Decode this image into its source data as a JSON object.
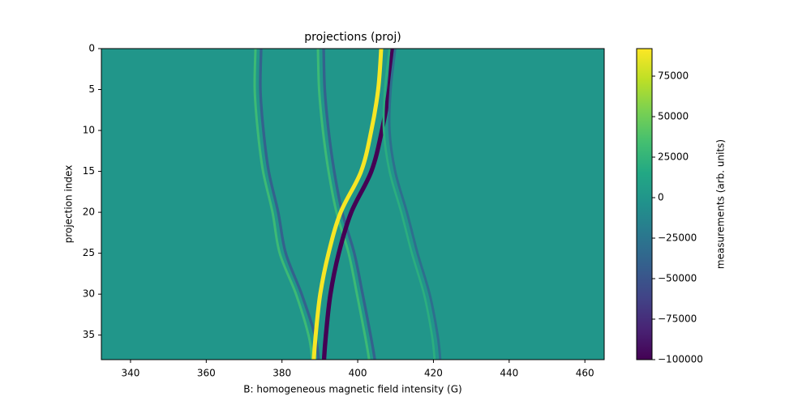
{
  "chart_data": {
    "type": "heatmap-tracks",
    "title": "projections (proj)",
    "xlabel": "B: homogeneous magnetic field intensity (G)",
    "ylabel": "projection index",
    "colorbar_label": "measurements (arb. units)",
    "xlim": [
      332.3,
      465.1
    ],
    "xticks": [
      340,
      360,
      380,
      400,
      420,
      440,
      460
    ],
    "ylim": [
      0,
      38
    ],
    "y_inverted": true,
    "yticks": [
      0,
      5,
      10,
      15,
      20,
      25,
      30,
      35
    ],
    "clim": [
      -100000,
      92000
    ],
    "cticks": [
      {
        "value": -100000,
        "label": "−100000"
      },
      {
        "value": -75000,
        "label": "−75000"
      },
      {
        "value": -50000,
        "label": "−50000"
      },
      {
        "value": -25000,
        "label": "−25000"
      },
      0,
      25000,
      50000,
      75000
    ],
    "background": 0,
    "y": [
      0,
      5,
      10,
      15,
      20,
      25,
      30,
      35,
      38
    ],
    "series": [
      {
        "level": 30000,
        "values": [
          373,
          372.8,
          373.6,
          375,
          377.5,
          379.4,
          383.7,
          387,
          388
        ]
      },
      {
        "level": -40000,
        "values": [
          374.5,
          374.3,
          375.1,
          376.5,
          379,
          381,
          385.2,
          388.7,
          389.7
        ]
      },
      {
        "level": 30000,
        "values": [
          389.5,
          389.8,
          390.8,
          392.3,
          394.4,
          397.6,
          399.8,
          401.9,
          403
        ]
      },
      {
        "level": -40000,
        "values": [
          391,
          391.3,
          392.3,
          393.8,
          395.9,
          399.1,
          401.3,
          403.4,
          404.5
        ]
      },
      {
        "level": 90000,
        "values": [
          406.2,
          405.4,
          403.6,
          400.9,
          395.5,
          392.3,
          390.1,
          388.9,
          388.4
        ]
      },
      {
        "level": -100000,
        "values": [
          409.2,
          408.3,
          406.4,
          403.6,
          398.3,
          395,
          392.8,
          391.6,
          391.1
        ]
      },
      {
        "level": 20000,
        "values": [
          408.4,
          407.2,
          406.9,
          408.4,
          411.5,
          414.3,
          417.5,
          419.6,
          420.3
        ]
      },
      {
        "level": -30000,
        "values": [
          409.9,
          408.7,
          408.4,
          409.9,
          413,
          415.8,
          419,
          421.1,
          421.8
        ]
      }
    ]
  }
}
